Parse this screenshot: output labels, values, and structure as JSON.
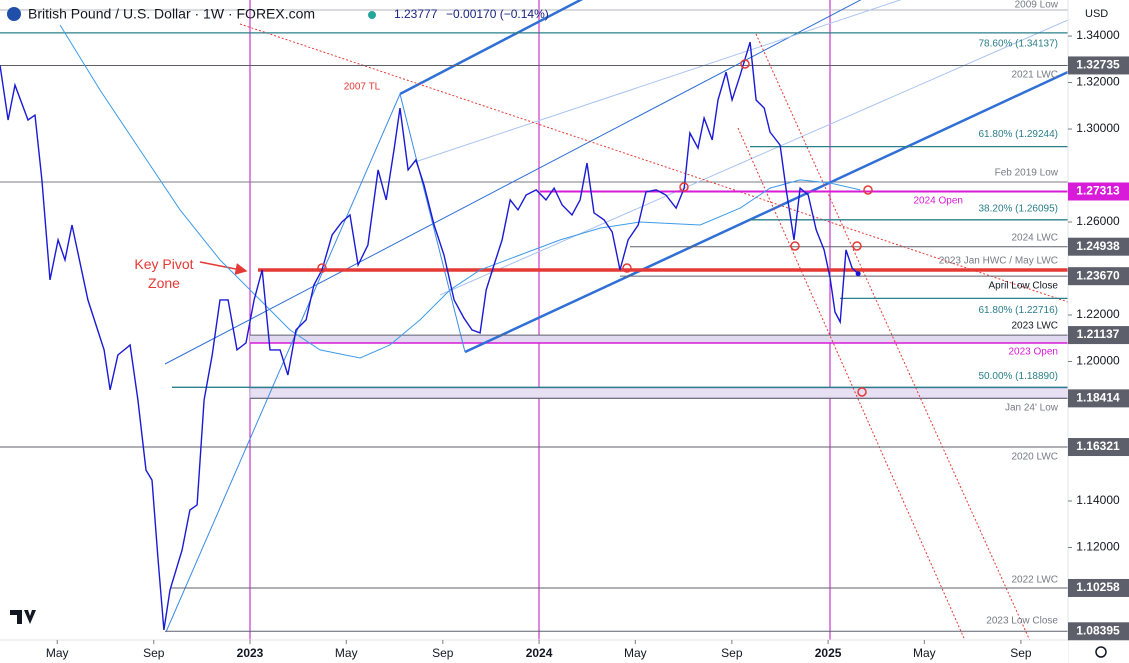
{
  "chart_data": {
    "type": "line",
    "title": "British Pound / U.S. Dollar · 1W · FOREX.com",
    "last_price": "1.23777",
    "change": "−0.00170 (−0.14%)",
    "currency": "USD",
    "xlim": [
      2022.135,
      2025.83
    ],
    "ylim": [
      1.0802,
      1.3555
    ],
    "xticks": [
      {
        "value": 2022.333,
        "label": "May"
      },
      {
        "value": 2022.667,
        "label": "Sep"
      },
      2023,
      {
        "value": 2023.333,
        "label": "May"
      },
      {
        "value": 2023.667,
        "label": "Sep"
      },
      2024,
      {
        "value": 2024.333,
        "label": "May"
      },
      {
        "value": 2024.667,
        "label": "Sep"
      },
      2025,
      {
        "value": 2025.333,
        "label": "May"
      },
      {
        "value": 2025.667,
        "label": "Sep"
      }
    ],
    "yticks": [
      {
        "value": 1.34,
        "label": "1.34000"
      },
      {
        "value": 1.32,
        "label": "1.32000"
      },
      {
        "value": 1.3,
        "label": "1.30000"
      },
      {
        "value": 1.26,
        "label": "1.26000"
      },
      {
        "value": 1.22,
        "label": "1.22000"
      },
      {
        "value": 1.2,
        "label": "1.20000"
      },
      {
        "value": 1.14,
        "label": "1.14000"
      },
      {
        "value": 1.12,
        "label": "1.12000"
      }
    ],
    "series": [
      {
        "color": "#1a1ad6",
        "x": [
          2022.135,
          2022.163,
          2022.187,
          2022.232,
          2022.256,
          2022.28,
          2022.308,
          2022.336,
          2022.36,
          2022.384,
          2022.439,
          2022.495,
          2022.516,
          2022.543,
          2022.585,
          2022.612,
          2022.64,
          2022.661,
          2022.682,
          2022.702,
          2022.723,
          2022.765,
          2022.792,
          2022.817,
          2022.841,
          2022.869,
          2022.896,
          2022.924,
          2022.955,
          2022.986,
          2023.014,
          2023.042,
          2023.069,
          2023.104,
          2023.131,
          2023.159,
          2023.194,
          2023.221,
          2023.249,
          2023.284,
          2023.318,
          2023.346,
          2023.374,
          2023.408,
          2023.443,
          2023.471,
          2023.498,
          2023.519,
          2023.547,
          2023.574,
          2023.602,
          2023.637,
          2023.671,
          2023.706,
          2023.74,
          2023.768,
          2023.796,
          2023.817,
          2023.844,
          2023.872,
          2023.9,
          2023.927,
          2023.955,
          2023.99,
          2024.024,
          2024.052,
          2024.08,
          2024.114,
          2024.142,
          2024.166,
          2024.19,
          2024.225,
          2024.253,
          2024.28,
          2024.308,
          2024.343,
          2024.37,
          2024.405,
          2024.439,
          2024.474,
          2024.502,
          2024.522,
          2024.55,
          2024.571,
          2024.599,
          2024.619,
          2024.647,
          2024.668,
          2024.696,
          2024.73,
          2024.751,
          2024.779,
          2024.799,
          2024.834,
          2024.855,
          2024.882,
          2024.903,
          2024.931,
          2024.959,
          2024.986,
          2025.007,
          2025.024,
          2025.042,
          2025.062,
          2025.083,
          2025.104
        ],
        "values": [
          1.3275,
          1.3039,
          1.3189,
          1.3039,
          1.306,
          1.2781,
          1.2351,
          1.2523,
          1.2437,
          1.2587,
          1.2265,
          1.205,
          1.1878,
          1.2028,
          1.2071,
          1.1835,
          1.1533,
          1.149,
          1.1146,
          1.0845,
          1.1017,
          1.1189,
          1.1361,
          1.1383,
          1.1835,
          1.2028,
          1.2265,
          1.2265,
          1.205,
          1.208,
          1.2265,
          1.2394,
          1.205,
          1.205,
          1.1942,
          1.2136,
          1.2179,
          1.2329,
          1.2394,
          1.2544,
          1.26,
          1.263,
          1.2415,
          1.2501,
          1.2824,
          1.2695,
          1.291,
          1.309,
          1.2824,
          1.2867,
          1.2759,
          1.2587,
          1.2458,
          1.2265,
          1.2187,
          1.2136,
          1.2123,
          1.2308,
          1.2415,
          1.2523,
          1.2695,
          1.2652,
          1.2716,
          1.2738,
          1.2695,
          1.2746,
          1.2673,
          1.263,
          1.2695,
          1.2854,
          1.2639,
          1.2609,
          1.2557,
          1.2394,
          1.2523,
          1.2587,
          1.2729,
          1.2738,
          1.2716,
          1.266,
          1.2746,
          1.2983,
          1.2918,
          1.3047,
          1.2953,
          1.3125,
          1.3245,
          1.3125,
          1.3232,
          1.3374,
          1.3125,
          1.309,
          1.2987,
          1.2931,
          1.2738,
          1.2523,
          1.2746,
          1.2716,
          1.2566,
          1.248,
          1.2359,
          1.2213,
          1.217,
          1.248,
          1.2402,
          1.23777
        ]
      },
      {
        "color": "#3d9be9",
        "x": [
          2022.343,
          2022.481,
          2022.619,
          2022.758,
          2022.896,
          2023.035,
          2023.138,
          2023.242,
          2023.381,
          2023.484,
          2023.588,
          2023.692,
          2023.796,
          2023.934,
          2024.073,
          2024.211,
          2024.349,
          2024.557,
          2024.696,
          2024.799,
          2024.903,
          2025.007,
          2025.111
        ],
        "values": [
          1.3447,
          1.3168,
          1.291,
          1.2652,
          1.2437,
          1.2265,
          1.2136,
          1.205,
          1.2015,
          1.2071,
          1.2179,
          1.2308,
          1.2394,
          1.2458,
          1.2523,
          1.2574,
          1.26,
          1.2587,
          1.266,
          1.2746,
          1.2781,
          1.2768,
          1.2738
        ]
      }
    ],
    "levels": [
      {
        "value": 1.32735,
        "label": "1.32735",
        "color": "#5d606b"
      },
      {
        "value": 1.27313,
        "label": "1.27313",
        "color": "#d81bd8"
      },
      {
        "value": 1.24938,
        "label": "1.24938",
        "color": "#5d606b"
      },
      {
        "value": 1.2367,
        "label": "1.23670",
        "color": "#5d606b"
      },
      {
        "value": 1.21137,
        "label": "1.21137",
        "color": "#5d606b"
      },
      {
        "value": 1.18414,
        "label": "1.18414",
        "color": "#5d606b"
      },
      {
        "value": 1.16321,
        "label": "1.16321",
        "color": "#5d606b"
      },
      {
        "value": 1.10258,
        "label": "1.10258",
        "color": "#5d606b"
      },
      {
        "value": 1.08395,
        "label": "1.08395",
        "color": "#5d606b"
      }
    ],
    "fibs": [
      {
        "value": 1.34137,
        "label": "78.60% (1.34137)"
      },
      {
        "value": 1.29244,
        "label": "61.80% (1.29244)"
      },
      {
        "value": 1.26095,
        "label": "38.20% (1.26095)"
      },
      {
        "value": 1.22716,
        "label": "61.80% (1.22716)"
      },
      {
        "value": 1.1889,
        "label": "50.00% (1.18890)"
      }
    ],
    "fib_color": "#2a7f8a",
    "annotations": [
      "2009 Low",
      "2021 LWC",
      "Feb 2019 Low",
      "2024 Open",
      "2024 LWC",
      "2023 Jan HWC / May LWC",
      "April Low Close",
      "2023 LWC",
      "2023 Open",
      "Jan 24' Low",
      "2020 LWC",
      "2022 LWC",
      "2023 Low Close",
      "2007 TL",
      "Key Pivot Zone"
    ]
  }
}
